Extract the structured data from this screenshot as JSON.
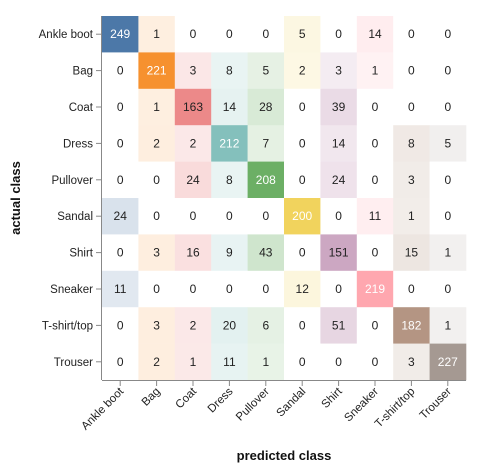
{
  "chart_data": {
    "type": "heatmap",
    "title": "",
    "xlabel": "predicted class",
    "ylabel": "actual class",
    "x_categories": [
      "Ankle boot",
      "Bag",
      "Coat",
      "Dress",
      "Pullover",
      "Sandal",
      "Shirt",
      "Sneaker",
      "T-shirt/top",
      "Trouser"
    ],
    "y_categories": [
      "Ankle boot",
      "Bag",
      "Coat",
      "Dress",
      "Pullover",
      "Sandal",
      "Shirt",
      "Sneaker",
      "T-shirt/top",
      "Trouser"
    ],
    "values": [
      [
        249,
        1,
        0,
        0,
        0,
        5,
        0,
        14,
        0,
        0
      ],
      [
        0,
        221,
        3,
        8,
        5,
        2,
        3,
        1,
        0,
        0
      ],
      [
        0,
        1,
        163,
        14,
        28,
        0,
        39,
        0,
        0,
        0
      ],
      [
        0,
        2,
        2,
        212,
        7,
        0,
        14,
        0,
        8,
        5
      ],
      [
        0,
        0,
        24,
        8,
        208,
        0,
        24,
        0,
        3,
        0
      ],
      [
        24,
        0,
        0,
        0,
        0,
        200,
        0,
        11,
        1,
        0
      ],
      [
        0,
        3,
        16,
        9,
        43,
        0,
        151,
        0,
        15,
        1
      ],
      [
        11,
        0,
        0,
        0,
        0,
        12,
        0,
        219,
        0,
        0
      ],
      [
        0,
        3,
        2,
        20,
        6,
        0,
        51,
        0,
        182,
        1
      ],
      [
        0,
        2,
        1,
        11,
        1,
        0,
        0,
        0,
        3,
        227
      ]
    ],
    "column_colors": [
      "#4c78a8",
      "#f58518",
      "#e45756",
      "#72b7b2",
      "#54a24b",
      "#eeca3b",
      "#b279a2",
      "#ff9da6",
      "#9d755d",
      "#9d9089"
    ],
    "color_scale_max": 249,
    "legend": "none",
    "grid": false
  }
}
